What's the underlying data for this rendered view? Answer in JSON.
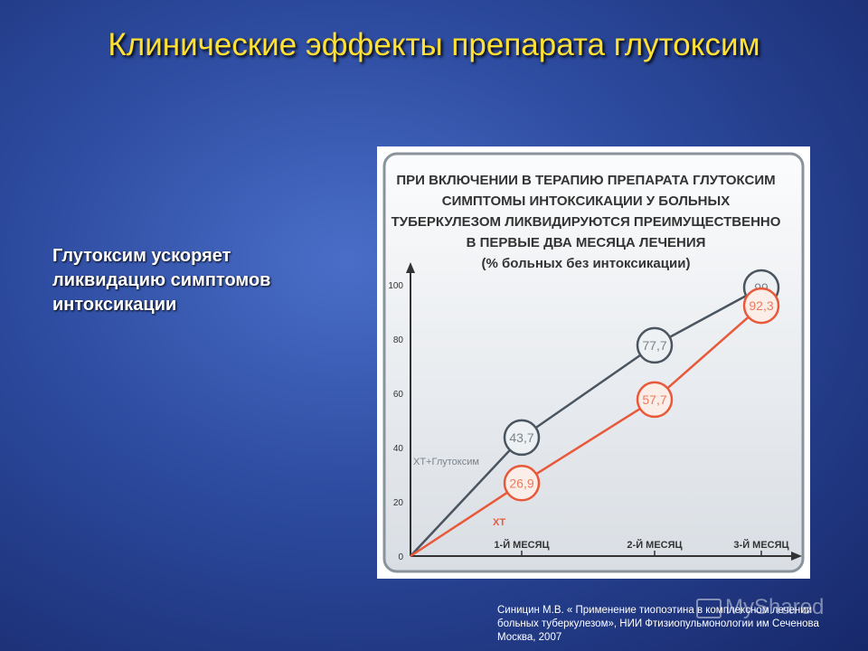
{
  "slide": {
    "title": "Клинические эффекты препарата глутоксим",
    "bullet": "Глутоксим ускоряет ликвидацию симптомов интоксикации",
    "citation": "Синицин М.В. « Применение тиопоэтина в комплексном лечении больных туберкулезом», НИИ Фтизиопульмонологии им Сеченова Москва, 2007",
    "watermark": "MyShared"
  },
  "chart_data": {
    "type": "line",
    "title_lines": [
      "ПРИ ВКЛЮЧЕНИИ В ТЕРАПИЮ ПРЕПАРАТА ГЛУТОКСИМ",
      "СИМПТОМЫ ИНТОКСИКАЦИИ У БОЛЬНЫХ",
      "ТУБЕРКУЛЕЗОМ ЛИКВИДИРУЮТСЯ ПРЕИМУЩЕСТВЕННО",
      "В ПЕРВЫЕ ДВА МЕСЯЦА ЛЕЧЕНИЯ",
      "(% больных без интоксикации)"
    ],
    "categories": [
      "1-Й МЕСЯЦ",
      "2-Й МЕСЯЦ",
      "3-Й МЕСЯЦ"
    ],
    "y_ticks": [
      0,
      20,
      40,
      60,
      80,
      100
    ],
    "ylim": [
      0,
      100
    ],
    "series": [
      {
        "name": "ХТ+Глутоксим",
        "values": [
          43.7,
          77.7,
          99
        ],
        "labels": [
          "43,7",
          "77,7",
          "99"
        ],
        "color": "#4a5560"
      },
      {
        "name": "ХТ",
        "values": [
          26.9,
          57.7,
          92.3
        ],
        "labels": [
          "26,9",
          "57,7",
          "92,3"
        ],
        "color": "#e8593a"
      }
    ]
  }
}
